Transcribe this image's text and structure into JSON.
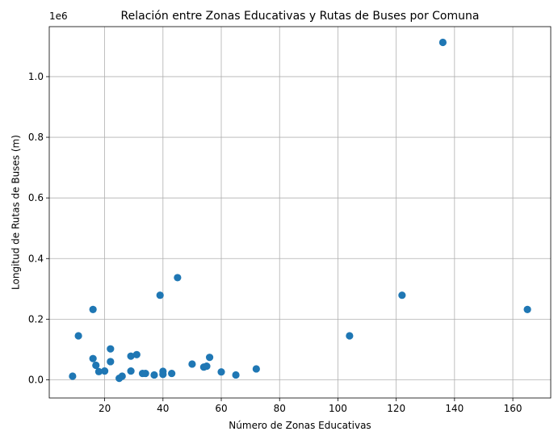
{
  "chart_data": {
    "type": "scatter",
    "title": "Relación entre Zonas Educativas y Rutas de Buses por Comuna",
    "xlabel": "Número de Zonas Educativas",
    "ylabel": "Longitud de Rutas de Buses (m)",
    "y_offset_label": "1e6",
    "xlim": [
      1,
      173
    ],
    "ylim": [
      -0.06,
      1.165
    ],
    "grid": true,
    "point_color": "#1f77b4",
    "x_ticks": [
      {
        "value": 20,
        "label": "20"
      },
      {
        "value": 40,
        "label": "40"
      },
      {
        "value": 60,
        "label": "60"
      },
      {
        "value": 80,
        "label": "80"
      },
      {
        "value": 100,
        "label": "100"
      },
      {
        "value": 120,
        "label": "120"
      },
      {
        "value": 140,
        "label": "140"
      },
      {
        "value": 160,
        "label": "160"
      }
    ],
    "y_ticks": [
      {
        "value": 0.0,
        "label": "0.0"
      },
      {
        "value": 0.2,
        "label": "0.2"
      },
      {
        "value": 0.4,
        "label": "0.4"
      },
      {
        "value": 0.6,
        "label": "0.6"
      },
      {
        "value": 0.8,
        "label": "0.8"
      },
      {
        "value": 1.0,
        "label": "1.0"
      }
    ],
    "points": [
      {
        "x": 9,
        "y": 0.012
      },
      {
        "x": 11,
        "y": 0.145
      },
      {
        "x": 16,
        "y": 0.232
      },
      {
        "x": 16,
        "y": 0.07
      },
      {
        "x": 17,
        "y": 0.048
      },
      {
        "x": 18,
        "y": 0.027
      },
      {
        "x": 20,
        "y": 0.029
      },
      {
        "x": 22,
        "y": 0.102
      },
      {
        "x": 22,
        "y": 0.06
      },
      {
        "x": 25,
        "y": 0.005
      },
      {
        "x": 26,
        "y": 0.012
      },
      {
        "x": 29,
        "y": 0.078
      },
      {
        "x": 29,
        "y": 0.029
      },
      {
        "x": 31,
        "y": 0.083
      },
      {
        "x": 33,
        "y": 0.021
      },
      {
        "x": 34,
        "y": 0.021
      },
      {
        "x": 37,
        "y": 0.016
      },
      {
        "x": 39,
        "y": 0.279
      },
      {
        "x": 40,
        "y": 0.028
      },
      {
        "x": 40,
        "y": 0.018
      },
      {
        "x": 43,
        "y": 0.021
      },
      {
        "x": 45,
        "y": 0.337
      },
      {
        "x": 50,
        "y": 0.052
      },
      {
        "x": 54,
        "y": 0.042
      },
      {
        "x": 55,
        "y": 0.045
      },
      {
        "x": 56,
        "y": 0.074
      },
      {
        "x": 60,
        "y": 0.026
      },
      {
        "x": 65,
        "y": 0.016
      },
      {
        "x": 72,
        "y": 0.036
      },
      {
        "x": 104,
        "y": 0.145
      },
      {
        "x": 122,
        "y": 0.279
      },
      {
        "x": 136,
        "y": 1.113
      },
      {
        "x": 165,
        "y": 0.232
      }
    ]
  }
}
